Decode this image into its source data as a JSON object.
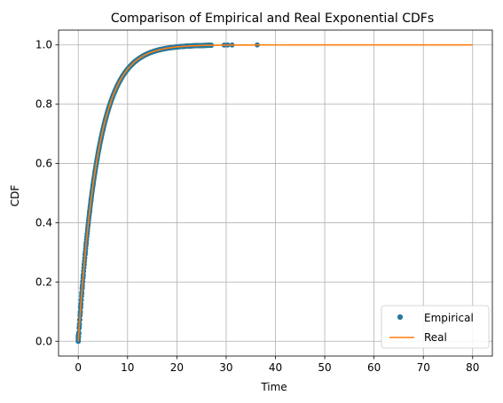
{
  "chart_data": {
    "type": "line",
    "title": "Comparison of Empirical and Real Exponential CDFs",
    "xlabel": "Time",
    "ylabel": "CDF",
    "xlim": [
      -4,
      84
    ],
    "ylim": [
      -0.05,
      1.05
    ],
    "xticks": [
      0,
      10,
      20,
      30,
      40,
      50,
      60,
      70,
      80
    ],
    "yticks": [
      0.0,
      0.2,
      0.4,
      0.6,
      0.8,
      1.0
    ],
    "xtick_labels": [
      "0",
      "10",
      "20",
      "30",
      "40",
      "50",
      "60",
      "70",
      "80"
    ],
    "ytick_labels": [
      "0.0",
      "0.2",
      "0.4",
      "0.6",
      "0.8",
      "1.0"
    ],
    "grid": true,
    "legend_position": "lower-right",
    "series": [
      {
        "name": "Empirical",
        "style": "markers",
        "color": "#1f77b4",
        "marker_edge_color": "#2d7a8a",
        "rate": 0.25,
        "points_x": [
          0,
          0.1,
          0.2,
          0.3,
          0.4,
          0.5,
          0.6,
          0.7,
          0.8,
          0.9,
          1,
          1.2,
          1.4,
          1.6,
          1.8,
          2,
          2.3,
          2.6,
          3,
          3.4,
          3.8,
          4.2,
          4.6,
          5,
          5.5,
          6,
          6.5,
          7,
          7.5,
          8,
          8.5,
          9,
          9.5,
          10,
          10.5,
          11,
          11.5,
          12,
          12.5,
          13,
          13.5,
          14,
          14.5,
          15,
          15.5,
          16,
          16.5,
          17,
          17.5,
          18,
          18.5,
          19,
          19.5,
          20,
          20.5,
          21,
          21.5,
          22,
          22.5,
          23,
          23.5,
          24,
          24.5,
          25,
          25.5,
          26,
          26.5,
          27,
          29.6,
          30.3,
          31.2,
          36.3
        ],
        "points_y": [
          0,
          0.025,
          0.049,
          0.072,
          0.095,
          0.118,
          0.139,
          0.161,
          0.181,
          0.201,
          0.221,
          0.259,
          0.295,
          0.33,
          0.362,
          0.393,
          0.437,
          0.478,
          0.528,
          0.573,
          0.613,
          0.65,
          0.683,
          0.713,
          0.747,
          0.777,
          0.803,
          0.826,
          0.847,
          0.865,
          0.881,
          0.895,
          0.907,
          0.918,
          0.928,
          0.936,
          0.944,
          0.95,
          0.956,
          0.961,
          0.966,
          0.97,
          0.973,
          0.976,
          0.979,
          0.982,
          0.984,
          0.986,
          0.987,
          0.989,
          0.99,
          0.991,
          0.992,
          0.993,
          0.994,
          0.995,
          0.995,
          0.996,
          0.996,
          0.997,
          0.997,
          0.998,
          0.998,
          0.998,
          0.998,
          0.999,
          0.999,
          0.999,
          0.9995,
          0.9997,
          0.9998,
          1.0
        ]
      },
      {
        "name": "Real",
        "style": "line",
        "color": "#ff7f0e",
        "rate": 0.25,
        "x_range": [
          0,
          80
        ]
      }
    ]
  }
}
